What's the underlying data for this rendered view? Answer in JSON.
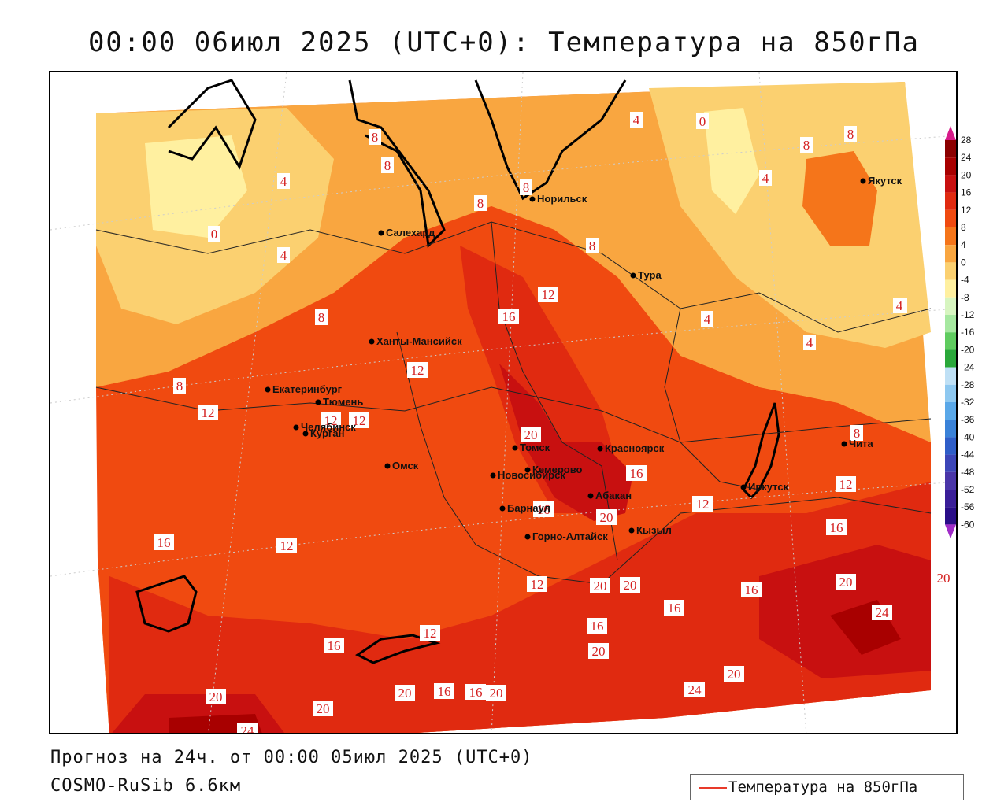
{
  "title": "00:00 06июл 2025 (UTC+0): Температура на 850гПа",
  "footer": {
    "line1": "Прогноз на 24ч. от 00:00 05июл 2025 (UTC+0)",
    "line2": "COSMO-RuSib 6.6км"
  },
  "legend": {
    "label": "Температура на 850гПа",
    "line_color": "#e83a2a"
  },
  "scale": {
    "ticks": [
      "28",
      "24",
      "20",
      "16",
      "12",
      "8",
      "4",
      "0",
      "-4",
      "-8",
      "-12",
      "-16",
      "-20",
      "-24",
      "-28",
      "-32",
      "-36",
      "-40",
      "-44",
      "-48",
      "-52",
      "-56",
      "-60"
    ],
    "colors": [
      "#8b0000",
      "#a80000",
      "#c81010",
      "#e02a10",
      "#f04a10",
      "#f5751a",
      "#f9a640",
      "#fbd070",
      "#fff0a0",
      "#d7f5c0",
      "#a6e8a0",
      "#5fcc5f",
      "#2aa83a",
      "#bfe0f5",
      "#8ec8f0",
      "#5aa8e8",
      "#3a82d8",
      "#2f5ec8",
      "#3c46b8",
      "#4a36a8",
      "#3a1e98",
      "#2a0e88"
    ],
    "top_color": "#d81b8a",
    "bottom_color": "#a02cc8"
  },
  "cities": [
    {
      "name": "Норильск"
    },
    {
      "name": "Якутск"
    },
    {
      "name": "Салехард"
    },
    {
      "name": "Тура"
    },
    {
      "name": "Ханты-Мансийск"
    },
    {
      "name": "Екатеринбург"
    },
    {
      "name": "Тюмень"
    },
    {
      "name": "Челябинск"
    },
    {
      "name": "Курган"
    },
    {
      "name": "Томск"
    },
    {
      "name": "Красноярск"
    },
    {
      "name": "Омск"
    },
    {
      "name": "Новосибирск"
    },
    {
      "name": "Кемерово"
    },
    {
      "name": "Абакан"
    },
    {
      "name": "Барнаул"
    },
    {
      "name": "Иркутск"
    },
    {
      "name": "Горно-Алтайск"
    },
    {
      "name": "Кызыл"
    },
    {
      "name": "Чита"
    }
  ],
  "isotherm_labels": [
    "8",
    "8",
    "4",
    "4",
    "0",
    "4",
    "8",
    "8",
    "8",
    "0",
    "8",
    "4",
    "4",
    "8",
    "12",
    "16",
    "12",
    "8",
    "4",
    "4",
    "4",
    "12",
    "12",
    "12",
    "8",
    "20",
    "16",
    "12",
    "8",
    "12",
    "16",
    "16",
    "20",
    "12",
    "16",
    "12",
    "16",
    "20",
    "20",
    "16",
    "16",
    "20",
    "20",
    "16",
    "12",
    "20",
    "20",
    "24",
    "20",
    "16",
    "20",
    "16",
    "20",
    "20",
    "24",
    "24",
    "20"
  ]
}
